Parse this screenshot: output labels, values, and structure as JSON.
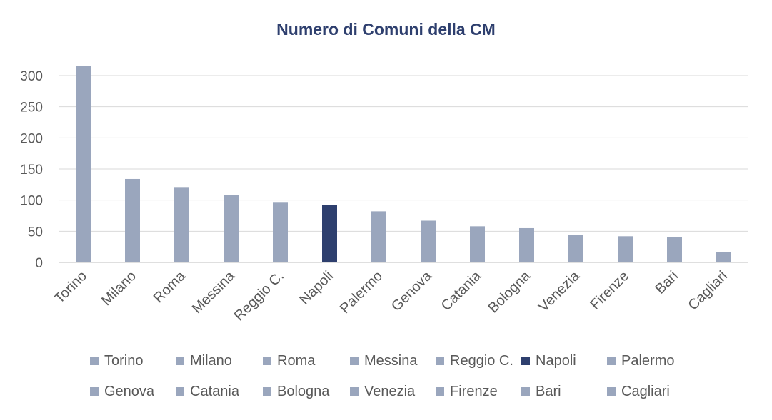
{
  "chart_data": {
    "type": "bar",
    "title": "Numero di Comuni della CM",
    "categories": [
      "Torino",
      "Milano",
      "Roma",
      "Messina",
      "Reggio C.",
      "Napoli",
      "Palermo",
      "Genova",
      "Catania",
      "Bologna",
      "Venezia",
      "Firenze",
      "Bari",
      "Cagliari"
    ],
    "values": [
      316,
      134,
      121,
      108,
      97,
      92,
      82,
      67,
      58,
      55,
      44,
      42,
      41,
      17
    ],
    "yticks": [
      0,
      50,
      100,
      150,
      200,
      250,
      300
    ],
    "ylim": [
      0,
      320
    ],
    "grid": true,
    "legend": "bottom",
    "colors": {
      "default": "#9aa6bd",
      "highlight": "#2e3f6e",
      "highlight_category": "Napoli",
      "grid": "#d9d9d9",
      "axis": "#bfbfbf"
    }
  }
}
